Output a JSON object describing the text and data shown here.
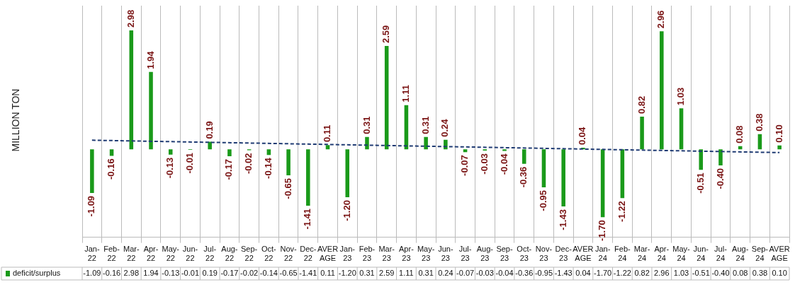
{
  "chart_data": {
    "type": "bar",
    "annotations": [
      "MILLION TON"
    ],
    "categories": [
      "Jan-22",
      "Feb-22",
      "Mar-22",
      "Apr-22",
      "May-22",
      "Jun-22",
      "Jul-22",
      "Aug-22",
      "Sep-22",
      "Oct-22",
      "Nov-22",
      "Dec-22",
      "AVERAGE",
      "Jan-23",
      "Feb-23",
      "Mar-23",
      "Apr-23",
      "May-23",
      "Jun-23",
      "Jul-23",
      "Aug-23",
      "Sep-23",
      "Oct-23",
      "Nov-23",
      "Dec-23",
      "AVERAGE",
      "Jan-24",
      "Feb-24",
      "Mar-24",
      "Apr-24",
      "May-24",
      "Jun-24",
      "Jul-24",
      "Aug-24",
      "Sep-24",
      "AVERAGE"
    ],
    "series": [
      {
        "name": "deficit/surplus",
        "color": "#1a9a1a",
        "values": [
          -1.09,
          -0.16,
          2.98,
          1.94,
          -0.13,
          -0.01,
          0.19,
          -0.17,
          -0.02,
          -0.14,
          -0.65,
          -1.41,
          0.11,
          -1.2,
          0.31,
          2.59,
          1.11,
          0.31,
          0.24,
          -0.07,
          -0.03,
          -0.04,
          -0.36,
          -0.95,
          -1.43,
          0.04,
          -1.7,
          -1.22,
          0.82,
          2.96,
          1.03,
          -0.51,
          -0.4,
          0.08,
          0.38,
          0.1
        ],
        "value_labels": [
          "-1.09",
          "-0.16",
          "2.98",
          "1.94",
          "-0.13",
          "-0.01",
          "0.19",
          "-0.17",
          "-0.02",
          "-0.14",
          "-0.65",
          "-1.41",
          "0.11",
          "-1.20",
          "0.31",
          "2.59",
          "1.11",
          "0.31",
          "0.24",
          "-0.07",
          "-0.03",
          "-0.04",
          "-0.36",
          "-0.95",
          "-1.43",
          "0.04",
          "-1.70",
          "-1.22",
          "0.82",
          "2.96",
          "1.03",
          "-0.51",
          "-0.40",
          "0.08",
          "0.38",
          "0.10"
        ]
      },
      {
        "type": "line",
        "color": "#1f3b73",
        "line_style": "dashed",
        "marker": "none",
        "values": [
          0.23,
          null,
          null,
          null,
          null,
          null,
          null,
          null,
          null,
          null,
          null,
          null,
          null,
          null,
          null,
          null,
          null,
          null,
          null,
          null,
          null,
          null,
          null,
          null,
          null,
          null,
          null,
          null,
          null,
          null,
          null,
          null,
          null,
          null,
          null,
          -0.08
        ]
      }
    ],
    "ylim": [
      -2.2,
      3.6
    ],
    "tick_labels": "x",
    "grid": "x",
    "legend": "bottom"
  }
}
